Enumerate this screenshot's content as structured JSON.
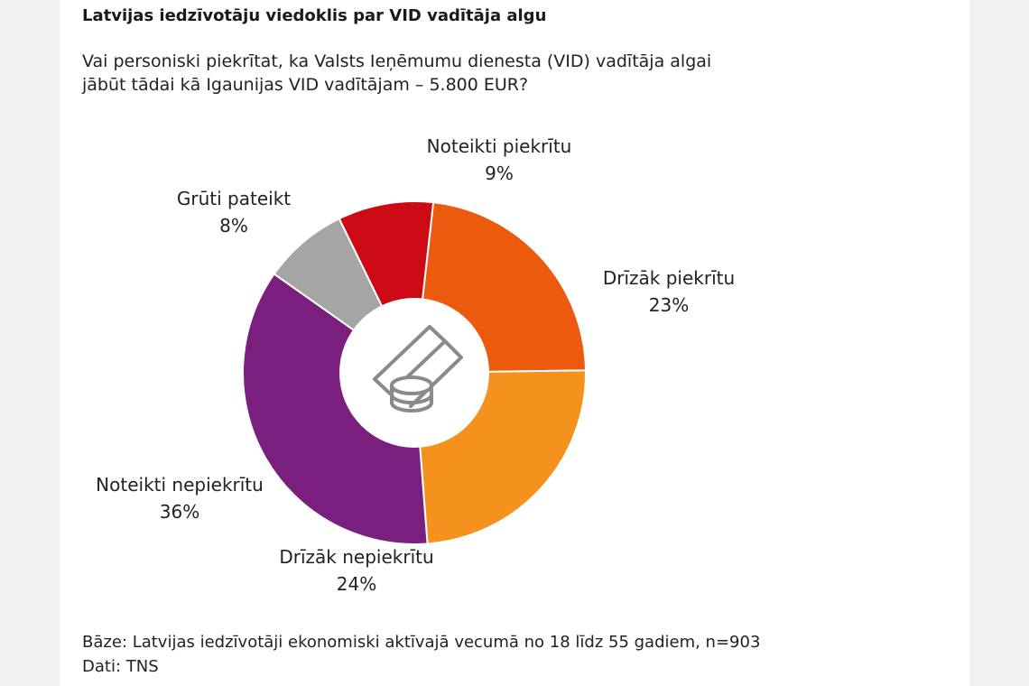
{
  "chart_data": {
    "type": "pie",
    "title": "Latvijas iedzīvotāju viedoklis par VID vadītāja algu",
    "subtitle_lines": [
      "Vai personiski piekrītat, ka Valsts Ieņēmumu dienesta (VID) vadītāja algai",
      "jābūt tādai kā Igaunijas VID vadītājam – 5.800 EUR?"
    ],
    "categories": [
      "Noteikti piekrītu",
      "Drīzāk piekrītu",
      "Drīzāk nepiekrītu",
      "Noteikti nepiekrītu",
      "Grūti pateikt"
    ],
    "values": [
      9,
      23,
      24,
      36,
      8
    ],
    "value_labels": [
      "9%",
      "23%",
      "24%",
      "36%",
      "8%"
    ],
    "colors": [
      "#cc0a14",
      "#ec5a0d",
      "#f5921e",
      "#7b1f7e",
      "#a5a5a5"
    ],
    "donut": true,
    "center_icon": "money-coins-icon",
    "footer_lines": [
      "Bāze: Latvijas iedzīvotāji ekonomiski aktīvajā vecumā no 18 līdz 55 gadiem, n=903",
      "Dati: TNS"
    ]
  }
}
